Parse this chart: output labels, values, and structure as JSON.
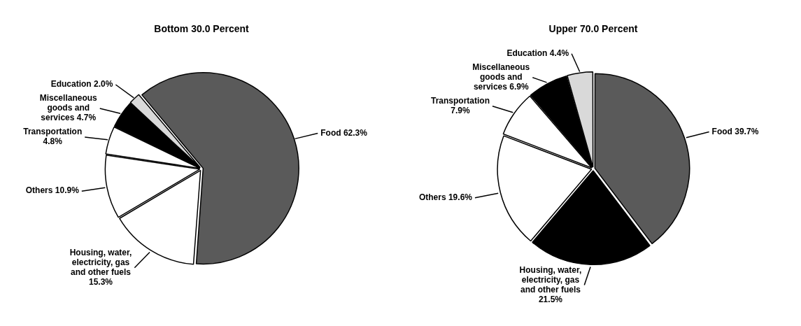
{
  "chart_data": [
    {
      "type": "pie",
      "title": "Bottom 30.0 Percent",
      "legend": false,
      "categories": [
        "Food",
        "Housing, water, electricity, gas and other fuels",
        "Others",
        "Transportation",
        "Miscellaneous goods and services",
        "Education"
      ],
      "values": [
        62.3,
        15.3,
        10.9,
        4.8,
        4.7,
        2.0
      ],
      "colors": [
        "#5a5a5a",
        "#ffffff",
        "#ffffff",
        "#ffffff",
        "#000000",
        "#d9d9d9"
      ],
      "value_labels": [
        "62.3%",
        "15.3%",
        "10.9%",
        "4.8%",
        "4.7%",
        "2.0%"
      ]
    },
    {
      "type": "pie",
      "title": "Upper 70.0 Percent",
      "legend": false,
      "categories": [
        "Food",
        "Housing, water, electricity, gas and other fuels",
        "Others",
        "Transportation",
        "Miscellaneous goods and services",
        "Education"
      ],
      "values": [
        39.7,
        21.5,
        19.6,
        7.9,
        6.9,
        4.4
      ],
      "colors": [
        "#5a5a5a",
        "#000000",
        "#ffffff",
        "#ffffff",
        "#000000",
        "#d9d9d9"
      ],
      "value_labels": [
        "39.7%",
        "21.5%",
        "19.6%",
        "7.9%",
        "6.9%",
        "4.4%"
      ]
    }
  ]
}
